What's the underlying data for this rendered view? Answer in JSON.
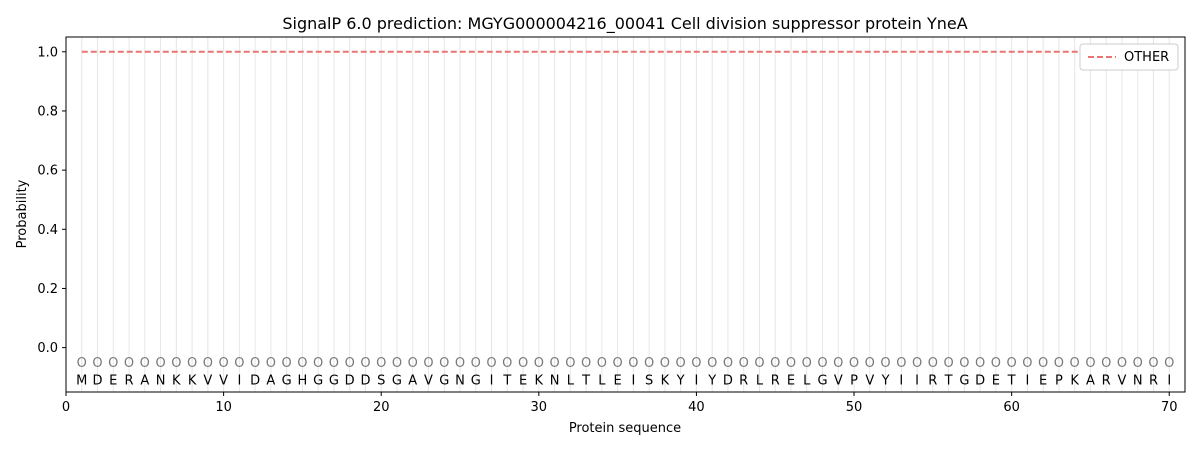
{
  "chart_data": {
    "type": "line",
    "title": "SignalP 6.0 prediction: MGYG000004216_00041 Cell division suppressor protein YneA",
    "xlabel": "Protein sequence",
    "ylabel": "Probability",
    "xlim": [
      0,
      71
    ],
    "ylim": [
      -0.15,
      1.05
    ],
    "xticks": [
      0,
      10,
      20,
      30,
      40,
      50,
      60,
      70
    ],
    "yticks": [
      0.0,
      0.2,
      0.4,
      0.6,
      0.8,
      1.0
    ],
    "grid": "vertical lines at each residue",
    "legend_position": "top-right",
    "sequence": [
      "M",
      "D",
      "E",
      "R",
      "A",
      "N",
      "K",
      "K",
      "V",
      "V",
      "I",
      "D",
      "A",
      "G",
      "H",
      "G",
      "G",
      "D",
      "D",
      "S",
      "G",
      "A",
      "V",
      "G",
      "N",
      "G",
      "I",
      "T",
      "E",
      "K",
      "N",
      "L",
      "T",
      "L",
      "E",
      "I",
      "S",
      "K",
      "Y",
      "I",
      "Y",
      "D",
      "R",
      "L",
      "R",
      "E",
      "L",
      "G",
      "V",
      "P",
      "V",
      "Y",
      "I",
      "I",
      "R",
      "T",
      "G",
      "D",
      "E",
      "T",
      "I",
      "E",
      "P",
      "K",
      "A",
      "R",
      "V",
      "N",
      "R",
      "I"
    ],
    "predicted_label": "O",
    "series": [
      {
        "name": "OTHER",
        "color": "#e87474",
        "style": "dashed",
        "x_start": 1,
        "x_end": 70,
        "value": 1.0
      }
    ]
  }
}
